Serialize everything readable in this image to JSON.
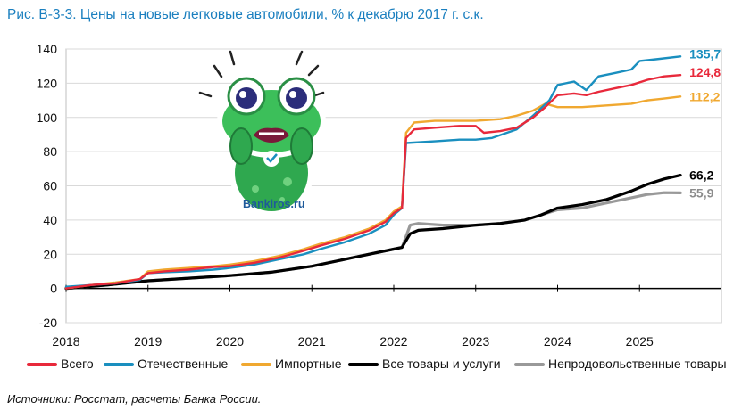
{
  "title": "Рис. В-3-3. Цены на новые легковые автомобили, % к декабрю 2017 г. с.к.",
  "source": "Источники: Росстат, расчеты Банка России.",
  "mascot": {
    "caption": "Bankiros.ru",
    "icon": "frog-mascot-icon"
  },
  "chart_data": {
    "type": "line",
    "title": "Рис. В-3-3. Цены на новые легковые автомобили, % к декабрю 2017 г. с.к.",
    "xlabel": "",
    "ylabel": "",
    "xlim": [
      2018.0,
      2026.0
    ],
    "ylim": [
      -20,
      140
    ],
    "y_ticks": [
      -20,
      0,
      20,
      40,
      60,
      80,
      100,
      120,
      140
    ],
    "x_ticks": [
      "2018",
      "2019",
      "2020",
      "2021",
      "2022",
      "2023",
      "2024",
      "2025"
    ],
    "grid": "horizontal",
    "legend_position": "bottom",
    "series": [
      {
        "name": "Всего",
        "color": "#e8293b",
        "end_label": "124,8",
        "points": [
          [
            2018.0,
            0
          ],
          [
            2018.3,
            2
          ],
          [
            2018.6,
            3
          ],
          [
            2018.9,
            5.5
          ],
          [
            2019.0,
            9
          ],
          [
            2019.2,
            10
          ],
          [
            2019.5,
            11
          ],
          [
            2019.8,
            12.5
          ],
          [
            2020.0,
            13
          ],
          [
            2020.3,
            15
          ],
          [
            2020.6,
            18
          ],
          [
            2020.9,
            22
          ],
          [
            2021.1,
            25
          ],
          [
            2021.4,
            29
          ],
          [
            2021.7,
            34
          ],
          [
            2021.9,
            39
          ],
          [
            2022.0,
            44
          ],
          [
            2022.1,
            47
          ],
          [
            2022.15,
            88
          ],
          [
            2022.25,
            93
          ],
          [
            2022.5,
            94
          ],
          [
            2022.8,
            95
          ],
          [
            2023.0,
            95
          ],
          [
            2023.1,
            91
          ],
          [
            2023.3,
            92
          ],
          [
            2023.5,
            94
          ],
          [
            2023.7,
            100
          ],
          [
            2023.85,
            106
          ],
          [
            2024.0,
            113
          ],
          [
            2024.2,
            114
          ],
          [
            2024.35,
            113
          ],
          [
            2024.5,
            115
          ],
          [
            2024.7,
            117
          ],
          [
            2024.9,
            119
          ],
          [
            2025.1,
            122
          ],
          [
            2025.3,
            124
          ],
          [
            2025.5,
            124.8
          ]
        ]
      },
      {
        "name": "Отечественные",
        "color": "#1a8fbf",
        "end_label": "135,7",
        "points": [
          [
            2018.0,
            1
          ],
          [
            2018.3,
            2
          ],
          [
            2018.6,
            3
          ],
          [
            2018.9,
            5
          ],
          [
            2019.0,
            9
          ],
          [
            2019.2,
            9.5
          ],
          [
            2019.5,
            10
          ],
          [
            2019.8,
            11
          ],
          [
            2020.0,
            12
          ],
          [
            2020.3,
            14
          ],
          [
            2020.6,
            17
          ],
          [
            2020.9,
            20
          ],
          [
            2021.1,
            23
          ],
          [
            2021.4,
            27
          ],
          [
            2021.7,
            32
          ],
          [
            2021.9,
            37
          ],
          [
            2022.0,
            43
          ],
          [
            2022.1,
            47
          ],
          [
            2022.15,
            85
          ],
          [
            2022.5,
            86
          ],
          [
            2022.8,
            87
          ],
          [
            2023.0,
            87
          ],
          [
            2023.2,
            88
          ],
          [
            2023.5,
            93
          ],
          [
            2023.7,
            101
          ],
          [
            2023.9,
            110
          ],
          [
            2024.0,
            119
          ],
          [
            2024.2,
            121
          ],
          [
            2024.35,
            116
          ],
          [
            2024.5,
            124
          ],
          [
            2024.7,
            126
          ],
          [
            2024.9,
            128
          ],
          [
            2025.0,
            133
          ],
          [
            2025.2,
            134
          ],
          [
            2025.5,
            135.7
          ]
        ]
      },
      {
        "name": "Импортные",
        "color": "#f0a830",
        "end_label": "112,2",
        "points": [
          [
            2018.0,
            0
          ],
          [
            2018.3,
            2
          ],
          [
            2018.6,
            3.5
          ],
          [
            2018.9,
            5.5
          ],
          [
            2019.0,
            10
          ],
          [
            2019.2,
            11
          ],
          [
            2019.5,
            12
          ],
          [
            2019.8,
            13
          ],
          [
            2020.0,
            14
          ],
          [
            2020.3,
            16
          ],
          [
            2020.6,
            19
          ],
          [
            2020.9,
            23
          ],
          [
            2021.1,
            26
          ],
          [
            2021.4,
            30
          ],
          [
            2021.7,
            35
          ],
          [
            2021.9,
            40
          ],
          [
            2022.0,
            45
          ],
          [
            2022.1,
            48
          ],
          [
            2022.15,
            91
          ],
          [
            2022.25,
            97
          ],
          [
            2022.5,
            98
          ],
          [
            2022.8,
            98
          ],
          [
            2023.0,
            98
          ],
          [
            2023.3,
            99
          ],
          [
            2023.5,
            101
          ],
          [
            2023.7,
            104
          ],
          [
            2023.85,
            108
          ],
          [
            2024.0,
            106
          ],
          [
            2024.3,
            106
          ],
          [
            2024.6,
            107
          ],
          [
            2024.9,
            108
          ],
          [
            2025.1,
            110
          ],
          [
            2025.3,
            111
          ],
          [
            2025.5,
            112.2
          ]
        ]
      },
      {
        "name": "Все товары и услуги",
        "color": "#000000",
        "end_label": "66,2",
        "points": [
          [
            2018.0,
            0
          ],
          [
            2018.5,
            2
          ],
          [
            2019.0,
            4.5
          ],
          [
            2019.5,
            6
          ],
          [
            2020.0,
            7.5
          ],
          [
            2020.5,
            9.5
          ],
          [
            2021.0,
            13
          ],
          [
            2021.5,
            18
          ],
          [
            2022.0,
            23
          ],
          [
            2022.1,
            24
          ],
          [
            2022.2,
            32
          ],
          [
            2022.3,
            34
          ],
          [
            2022.6,
            35
          ],
          [
            2023.0,
            37
          ],
          [
            2023.3,
            38
          ],
          [
            2023.6,
            40
          ],
          [
            2023.8,
            43
          ],
          [
            2024.0,
            47
          ],
          [
            2024.3,
            49
          ],
          [
            2024.6,
            52
          ],
          [
            2024.9,
            57
          ],
          [
            2025.1,
            61
          ],
          [
            2025.3,
            64
          ],
          [
            2025.5,
            66.2
          ]
        ]
      },
      {
        "name": "Непродовольственные товары",
        "color": "#999999",
        "end_label": "55,9",
        "points": [
          [
            2018.0,
            0
          ],
          [
            2018.5,
            2
          ],
          [
            2019.0,
            4.5
          ],
          [
            2019.5,
            6
          ],
          [
            2020.0,
            7.5
          ],
          [
            2020.5,
            9.5
          ],
          [
            2021.0,
            13
          ],
          [
            2021.5,
            18
          ],
          [
            2022.0,
            23
          ],
          [
            2022.1,
            24
          ],
          [
            2022.2,
            37
          ],
          [
            2022.3,
            38
          ],
          [
            2022.6,
            37
          ],
          [
            2023.0,
            37
          ],
          [
            2023.3,
            38
          ],
          [
            2023.6,
            40
          ],
          [
            2023.8,
            43
          ],
          [
            2024.0,
            46
          ],
          [
            2024.3,
            47
          ],
          [
            2024.6,
            50
          ],
          [
            2024.9,
            53
          ],
          [
            2025.1,
            55
          ],
          [
            2025.3,
            56
          ],
          [
            2025.5,
            55.9
          ]
        ]
      }
    ]
  }
}
